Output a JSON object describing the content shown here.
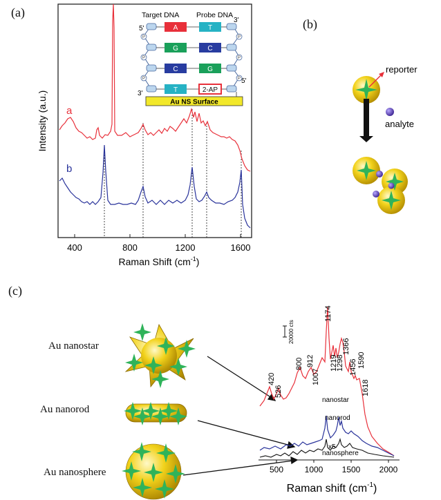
{
  "panels": {
    "a": {
      "label": "(a)",
      "ylabel": "Intensity (a.u.)",
      "xlabel": "Raman Shift (cm",
      "xlabel_sup": "-1",
      "xlabel_close": ")",
      "curve_labels": [
        "a",
        "b"
      ],
      "xticks": [
        "400",
        "800",
        "1200",
        "1600"
      ],
      "inset": {
        "target_title": "Target  DNA",
        "probe_title": "Probe DNA",
        "target_bases": [
          "A",
          "G",
          "C",
          "T"
        ],
        "probe_bases": [
          "T",
          "C",
          "G",
          "2-AP"
        ],
        "end_labels": [
          "5'",
          "3'",
          "3'",
          "5'"
        ],
        "phosphate": "P",
        "surface": "Au NS Surface"
      }
    },
    "b": {
      "label": "(b)",
      "reporter": "reporter",
      "analyte": "analyte"
    },
    "c": {
      "label": "(c)",
      "particles": [
        "Au nanostar",
        "Au nanorod",
        "Au nanosphere"
      ],
      "scalebar": "20000 cts",
      "peaks": [
        "420",
        "526",
        "800",
        "912",
        "1007",
        "1174",
        "1219",
        "1298",
        "1366",
        "1456",
        "1590",
        "1618"
      ],
      "series_labels": [
        "nanostar",
        "nanorod",
        "nanosphere"
      ],
      "scale_x5": "x5",
      "xticks": [
        "500",
        "1000",
        "1500",
        "2000"
      ],
      "xlabel": "Raman shift (cm",
      "xlabel_sup": "-1",
      "xlabel_close": ")"
    }
  },
  "colors": {
    "red": "#e8303a",
    "blue": "#28329a",
    "black": "#111111",
    "gold": "#f2d21b",
    "star": "#2fb35a"
  }
}
